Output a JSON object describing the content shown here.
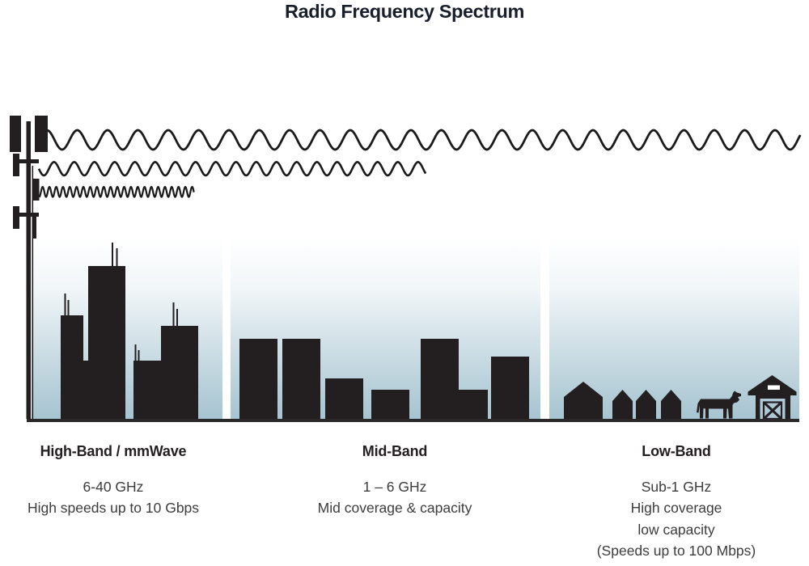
{
  "title": "Radio Frequency Spectrum",
  "colors": {
    "silhouette": "#231f20",
    "wave_stroke": "#1a1a1a",
    "sky_top": "#ffffff",
    "sky_bottom": "#a6c4d1",
    "ground": "#2a2829",
    "title_text": "#181f2b",
    "heading_text": "#231f20",
    "body_text": "#3c3c3c"
  },
  "icons": {
    "tower": "cell-tower-icon",
    "wave_long": "long-wavelength-wave-icon",
    "wave_medium": "medium-wavelength-wave-icon",
    "wave_short": "short-wavelength-wave-icon",
    "high_scene": "city-skyline-icon",
    "mid_scene": "midrise-buildings-icon",
    "low_scene": "farm-houses-icon",
    "cow": "cow-icon",
    "barn": "barn-icon"
  },
  "sections": [
    {
      "id": "high-band",
      "heading": "High-Band / mmWave",
      "lines": [
        "6-40 GHz",
        "High speeds up to 10 Gbps"
      ]
    },
    {
      "id": "mid-band",
      "heading": "Mid-Band",
      "lines": [
        "1 – 6 GHz",
        "Mid coverage & capacity"
      ]
    },
    {
      "id": "low-band",
      "heading": "Low-Band",
      "lines": [
        "Sub-1 GHz",
        "High coverage",
        "low capacity",
        "(Speeds up to 100 Mbps)"
      ]
    }
  ]
}
